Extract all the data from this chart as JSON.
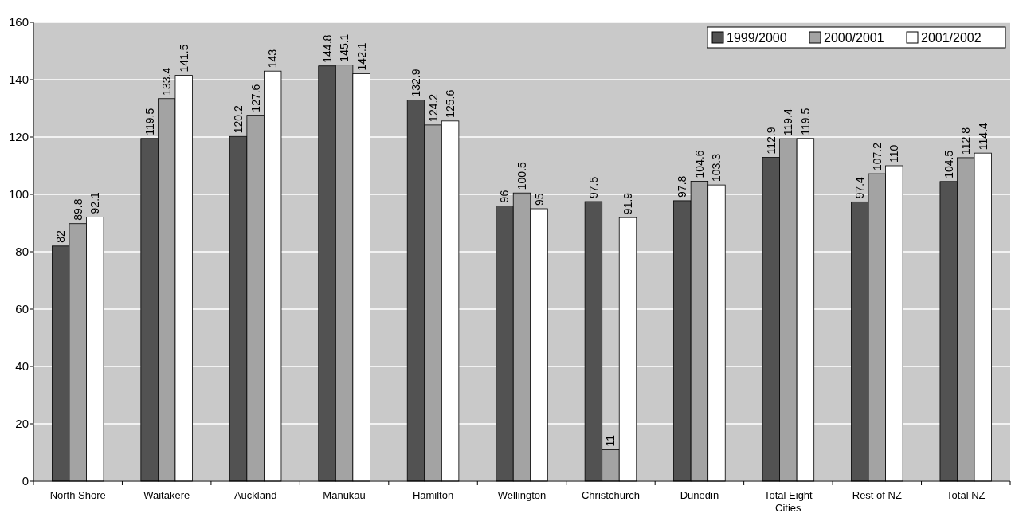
{
  "chart_data": {
    "type": "bar",
    "categories": [
      "North Shore",
      "Waitakere",
      "Auckland",
      "Manukau",
      "Hamilton",
      "Wellington",
      "Christchurch",
      "Dunedin",
      "Total Eight Cities",
      "Rest of NZ",
      "Total NZ"
    ],
    "series": [
      {
        "name": "1999/2000",
        "color": "#525252",
        "values": [
          82,
          119.5,
          120.2,
          144.8,
          132.9,
          96,
          97.5,
          97.8,
          112.9,
          97.4,
          104.5
        ]
      },
      {
        "name": "2000/2001",
        "color": "#a3a3a3",
        "values": [
          89.8,
          133.4,
          127.6,
          145.1,
          124.2,
          100.5,
          11,
          104.6,
          119.4,
          107.2,
          112.8
        ]
      },
      {
        "name": "2001/2002",
        "color": "#ffffff",
        "values": [
          92.1,
          141.5,
          143,
          142.1,
          125.6,
          95,
          91.9,
          103.3,
          119.5,
          110,
          114.4
        ]
      }
    ],
    "ylim": [
      0,
      160
    ],
    "yticks": [
      0,
      20,
      40,
      60,
      80,
      100,
      120,
      140,
      160
    ],
    "grid": "y",
    "legend": "top right",
    "data_labels": true
  }
}
